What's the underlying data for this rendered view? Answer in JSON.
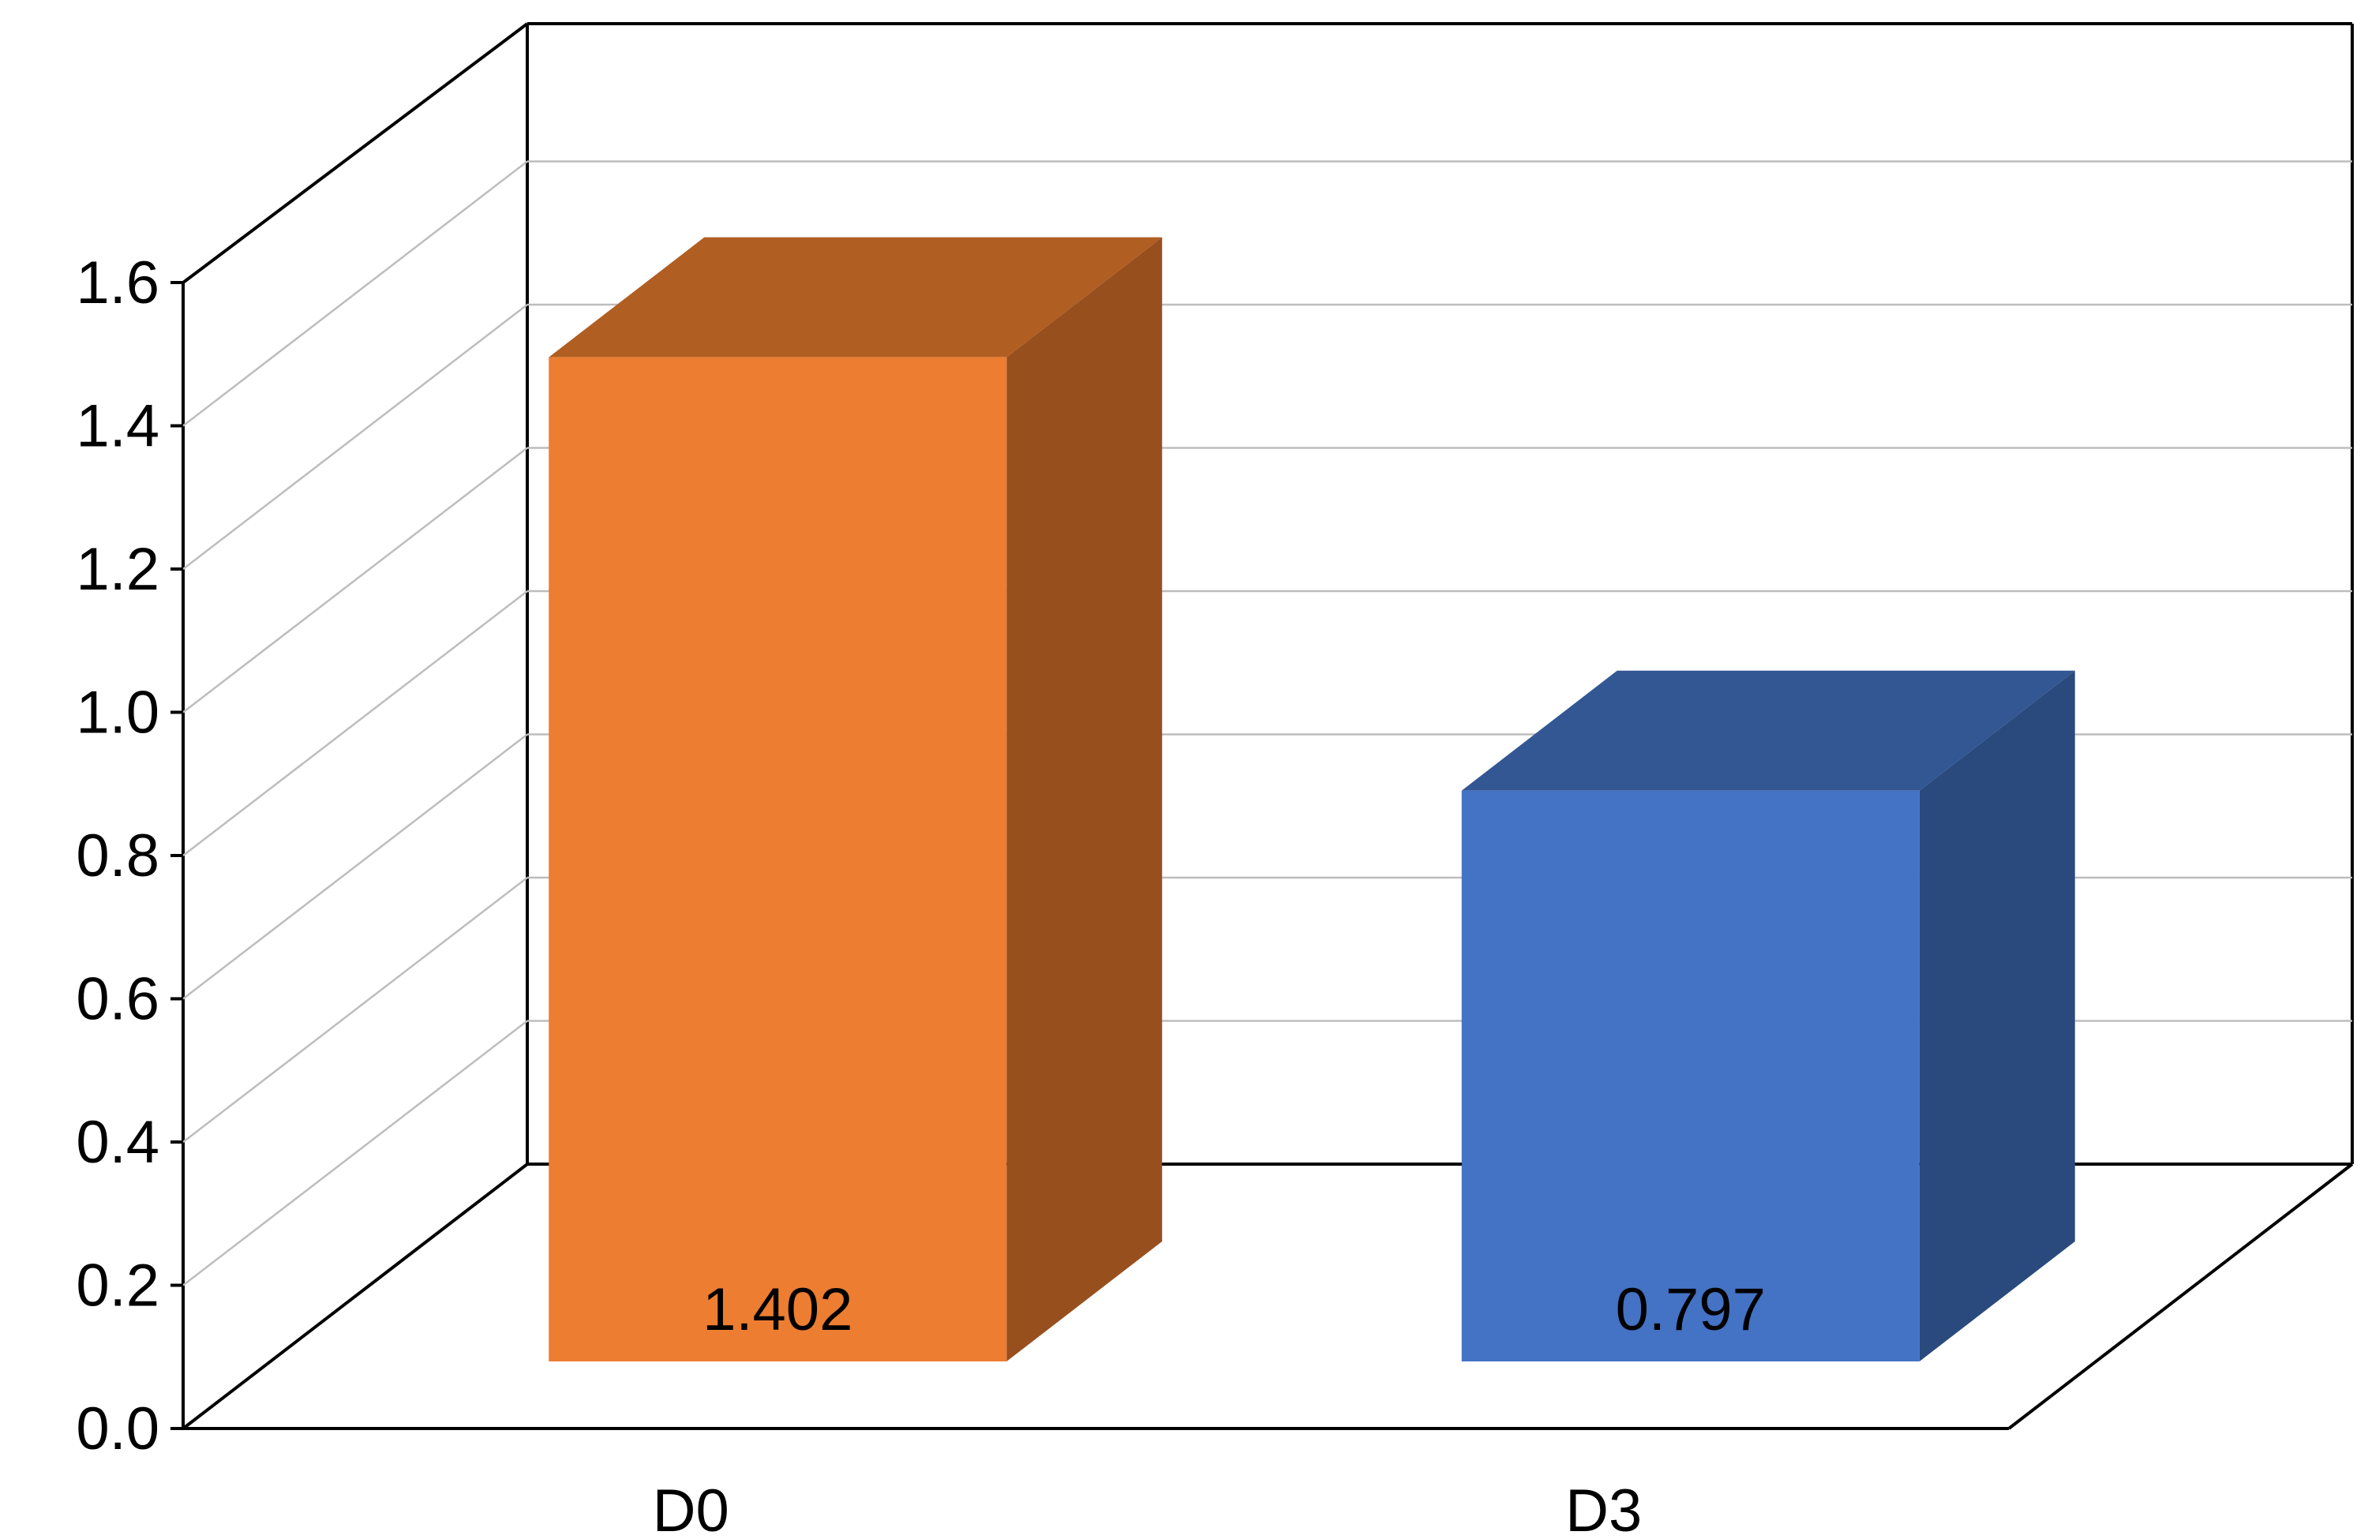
{
  "chart_data": {
    "type": "bar",
    "style": "3d",
    "title": "",
    "xlabel": "",
    "ylabel": "",
    "ylim": [
      0,
      1.6
    ],
    "yticks": [
      "0.0",
      "0.2",
      "0.4",
      "0.6",
      "0.8",
      "1.0",
      "1.2",
      "1.4",
      "1.6"
    ],
    "grid": true,
    "legend": "none",
    "categories": [
      "D0",
      "D3"
    ],
    "values": [
      1.402,
      0.797
    ],
    "data_labels": [
      "1.402",
      "0.797"
    ],
    "colors": {
      "D0": {
        "front": "#ED7D31",
        "top": "#B15E22",
        "side": "#984F1E"
      },
      "D3": {
        "front": "#4472C4",
        "top": "#335793",
        "side": "#2A4A7D"
      },
      "gridline": "#BDBDBD",
      "frame": "#000000"
    }
  }
}
